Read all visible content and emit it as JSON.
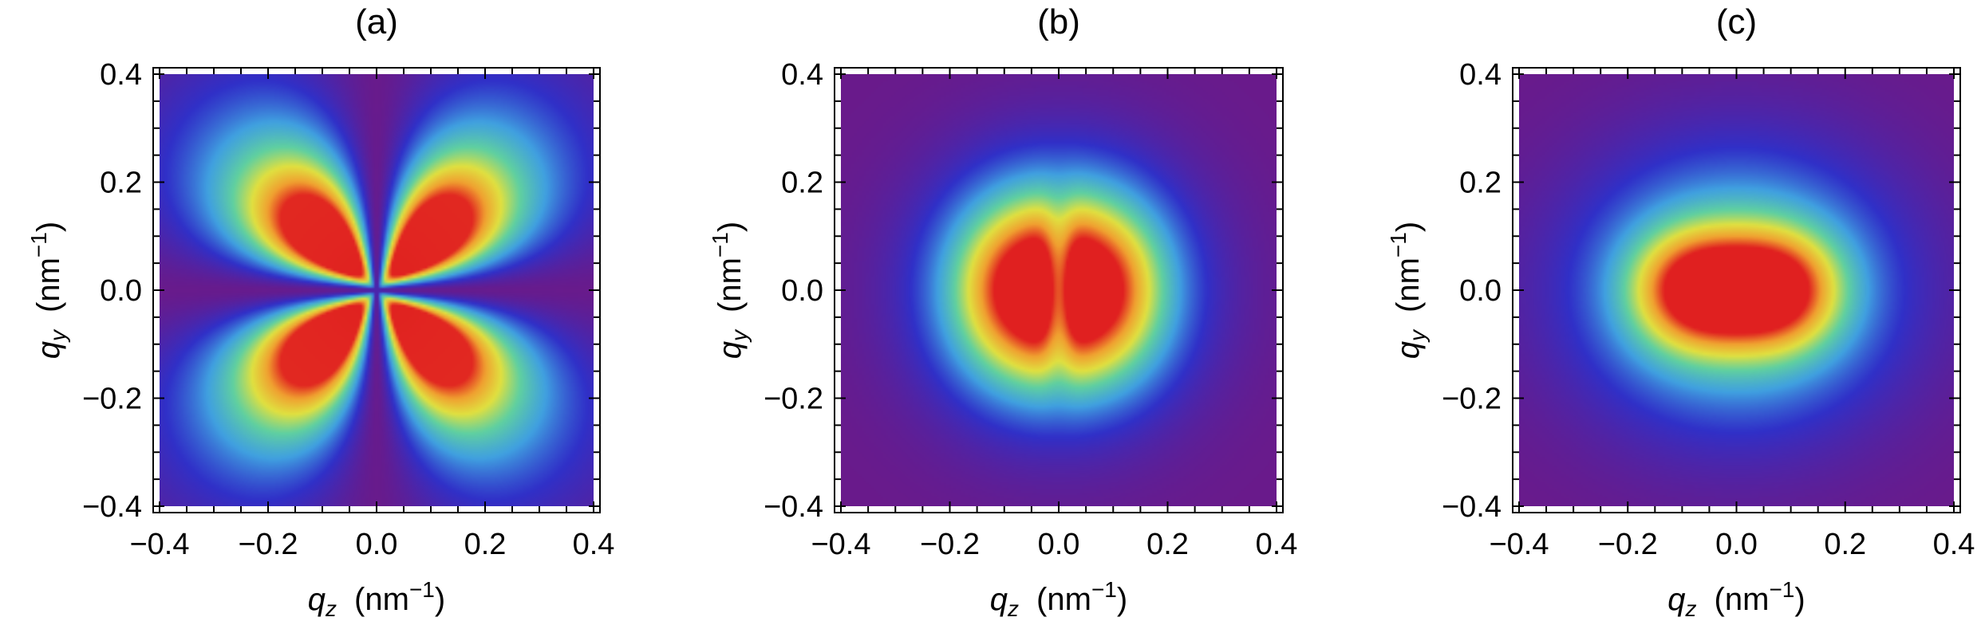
{
  "chart_data": [
    {
      "type": "heatmap",
      "title": "(a)",
      "pattern": "four-lobe cloverleaf pattern along the diagonals, maxima near (±0.1, ±0.08)",
      "xlabel": {
        "symbol": "q",
        "sub": "z",
        "unit": "(nm",
        "exp": "−1",
        "close": ")"
      },
      "ylabel": {
        "symbol": "q",
        "sub": "y",
        "unit": "(nm",
        "exp": "−1",
        "close": ")"
      },
      "xlim": [
        -0.4,
        0.4
      ],
      "ylim": [
        -0.4,
        0.4
      ],
      "xticks": [
        "−0.4",
        "−0.2",
        "0.0",
        "0.2",
        "0.4"
      ],
      "yticks": [
        "−0.4",
        "−0.2",
        "0.0",
        "0.2",
        "0.4"
      ],
      "colorscale": [
        "#6a1a8a",
        "#3030c8",
        "#40a0e0",
        "#60d0a0",
        "#e0e040",
        "#f0a030",
        "#e02020"
      ]
    },
    {
      "type": "heatmap",
      "title": "(b)",
      "pattern": "two lobes along q_z with a central pinch at origin, maxima near (±0.08, 0)",
      "xlabel": {
        "symbol": "q",
        "sub": "z",
        "unit": "(nm",
        "exp": "−1",
        "close": ")"
      },
      "ylabel": {
        "symbol": "q",
        "sub": "y",
        "unit": "(nm",
        "exp": "−1",
        "close": ")"
      },
      "xlim": [
        -0.4,
        0.4
      ],
      "ylim": [
        -0.4,
        0.4
      ],
      "xticks": [
        "−0.4",
        "−0.2",
        "0.0",
        "0.2",
        "0.4"
      ],
      "yticks": [
        "−0.4",
        "−0.2",
        "0.0",
        "0.2",
        "0.4"
      ],
      "colorscale": [
        "#6a1a8a",
        "#3030c8",
        "#40a0e0",
        "#60d0a0",
        "#e0e040",
        "#f0a030",
        "#e02020"
      ]
    },
    {
      "type": "heatmap",
      "title": "(c)",
      "pattern": "elongated peanut-shaped maximum along q_z, maxima near (±0.08, 0)",
      "xlabel": {
        "symbol": "q",
        "sub": "z",
        "unit": "(nm",
        "exp": "−1",
        "close": ")"
      },
      "ylabel": {
        "symbol": "q",
        "sub": "y",
        "unit": "(nm",
        "exp": "−1",
        "close": ")"
      },
      "xlim": [
        -0.4,
        0.4
      ],
      "ylim": [
        -0.4,
        0.4
      ],
      "xticks": [
        "−0.4",
        "−0.2",
        "0.0",
        "0.2",
        "0.4"
      ],
      "yticks": [
        "−0.4",
        "−0.2",
        "0.0",
        "0.2",
        "0.4"
      ],
      "colorscale": [
        "#6a1a8a",
        "#3030c8",
        "#40a0e0",
        "#60d0a0",
        "#e0e040",
        "#f0a030",
        "#e02020"
      ]
    }
  ]
}
